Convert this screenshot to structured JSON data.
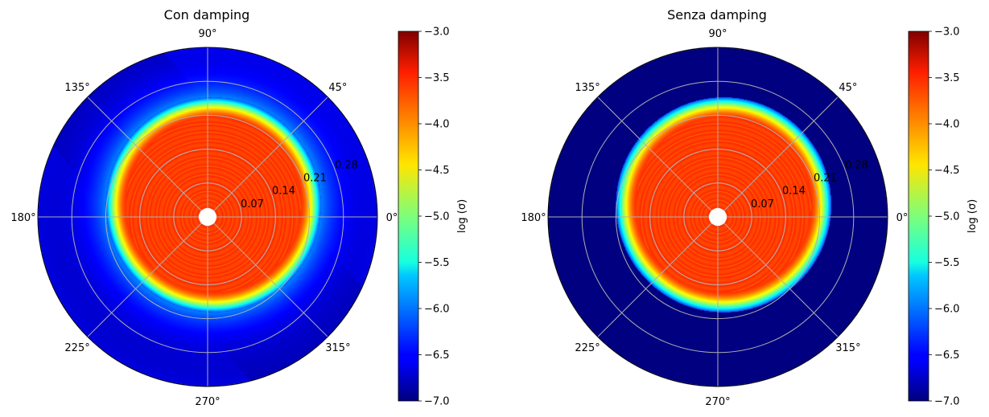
{
  "chart_data": [
    {
      "type": "heatmap",
      "projection": "polar",
      "title": "Con damping",
      "angle_tick_labels": [
        "0°",
        "45°",
        "90°",
        "135°",
        "180°",
        "225°",
        "270°",
        "315°"
      ],
      "angle_tick_values_deg": [
        0,
        45,
        90,
        135,
        180,
        225,
        270,
        315
      ],
      "radial_tick_labels": [
        "0.07",
        "0.14",
        "0.21",
        "0.28"
      ],
      "radial_tick_values": [
        0.07,
        0.14,
        0.21,
        0.28
      ],
      "radial_range": [
        0,
        0.35
      ],
      "hole_radius": 0.018,
      "grid": true,
      "colorbar": {
        "label": "log (σ)",
        "range": [
          -7.0,
          -3.0
        ],
        "tick_labels": [
          "−3.0",
          "−3.5",
          "−4.0",
          "−4.5",
          "−5.0",
          "−5.5",
          "−6.0",
          "−6.5",
          "−7.0"
        ],
        "tick_values": [
          -3.0,
          -3.5,
          -4.0,
          -4.5,
          -5.0,
          -5.5,
          -6.0,
          -6.5,
          -7.0
        ],
        "colormap": "jet"
      },
      "lobe": {
        "center_dx": 0.012,
        "center_dy": 0.025,
        "radius": 0.222,
        "core_radius": 0.18,
        "core_value": -3.7,
        "ring_spacing": 0.0175,
        "background_value": -6.8,
        "halo": true,
        "halo_sigma": 0.045,
        "stripe_angle_deg": 40
      }
    },
    {
      "type": "heatmap",
      "projection": "polar",
      "title": "Senza damping",
      "angle_tick_labels": [
        "0°",
        "45°",
        "90°",
        "135°",
        "180°",
        "225°",
        "270°",
        "315°"
      ],
      "angle_tick_values_deg": [
        0,
        45,
        90,
        135,
        180,
        225,
        270,
        315
      ],
      "radial_tick_labels": [
        "0.07",
        "0.14",
        "0.21",
        "0.28"
      ],
      "radial_tick_values": [
        0.07,
        0.14,
        0.21,
        0.28
      ],
      "radial_range": [
        0,
        0.35
      ],
      "hole_radius": 0.018,
      "grid": true,
      "colorbar": {
        "label": "log (σ)",
        "range": [
          -7.0,
          -3.0
        ],
        "tick_labels": [
          "−3.0",
          "−3.5",
          "−4.0",
          "−4.5",
          "−5.0",
          "−5.5",
          "−6.0",
          "−6.5",
          "−7.0"
        ],
        "tick_values": [
          -3.0,
          -3.5,
          -4.0,
          -4.5,
          -5.0,
          -5.5,
          -6.0,
          -6.5,
          -7.0
        ],
        "colormap": "jet"
      },
      "lobe": {
        "center_dx": 0.012,
        "center_dy": 0.025,
        "radius": 0.222,
        "core_radius": 0.18,
        "core_value": -3.7,
        "ring_spacing": 0.0175,
        "background_value": -7.0,
        "halo": false,
        "halo_sigma": 0.0,
        "stripe_angle_deg": 0
      }
    }
  ]
}
